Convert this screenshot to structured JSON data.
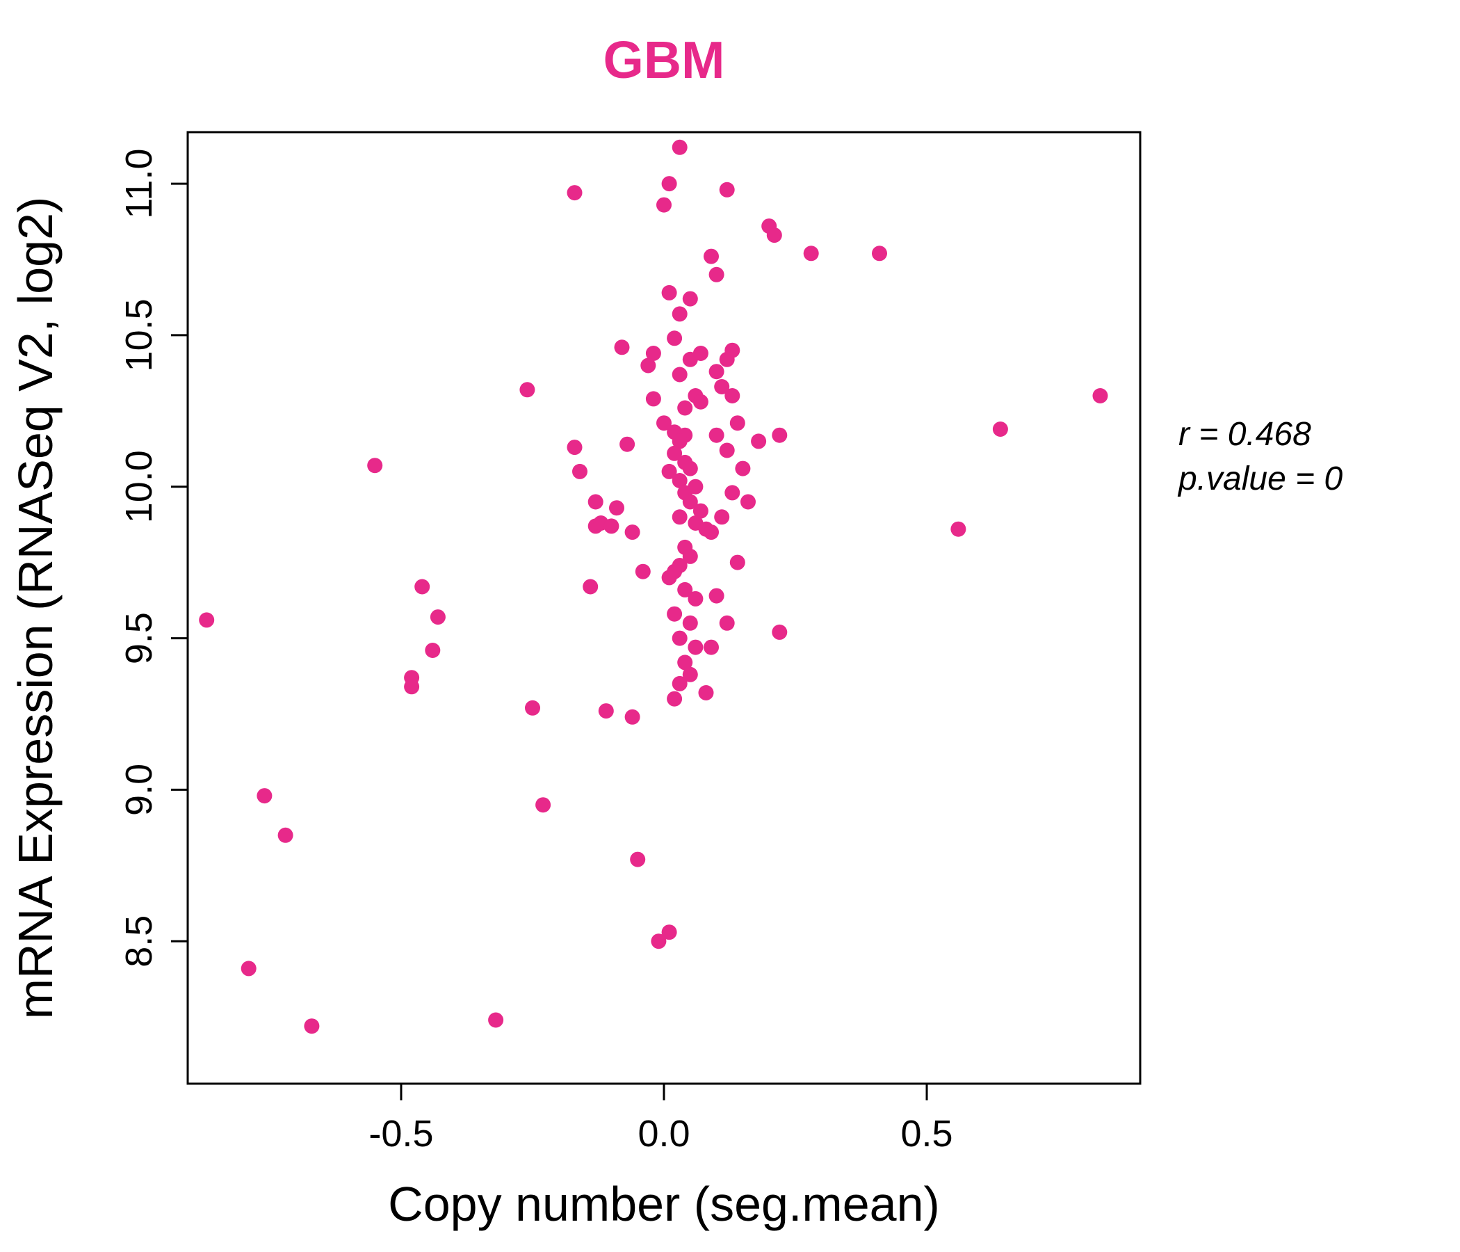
{
  "chart_data": {
    "type": "scatter",
    "title": "GBM",
    "title_color": "#E7298A",
    "point_color": "#E7298A",
    "xlabel": "Copy number (seg.mean)",
    "ylabel": "mRNA Expression (RNASeq V2, log2)",
    "xlim": [
      -0.906,
      0.906
    ],
    "ylim": [
      8.03,
      11.17
    ],
    "x_tick_values": [
      -0.5,
      0.0,
      0.5
    ],
    "x_tick_labels": [
      "-0.5",
      "0.0",
      "0.5"
    ],
    "y_tick_values": [
      8.5,
      9.0,
      9.5,
      10.0,
      10.5,
      11.0
    ],
    "y_tick_labels": [
      "8.5",
      "9.0",
      "9.5",
      "10.0",
      "10.5",
      "11.0"
    ],
    "grid": false,
    "annotations": [
      "r = 0.468",
      "p.value = 0"
    ],
    "points": [
      [
        -0.87,
        9.56
      ],
      [
        -0.79,
        8.41
      ],
      [
        -0.76,
        8.98
      ],
      [
        -0.72,
        8.85
      ],
      [
        -0.67,
        8.22
      ],
      [
        -0.55,
        10.07
      ],
      [
        -0.48,
        9.37
      ],
      [
        -0.48,
        9.34
      ],
      [
        -0.46,
        9.67
      ],
      [
        -0.44,
        9.46
      ],
      [
        -0.43,
        9.57
      ],
      [
        -0.32,
        8.24
      ],
      [
        -0.26,
        10.32
      ],
      [
        -0.25,
        9.27
      ],
      [
        -0.23,
        8.95
      ],
      [
        -0.17,
        10.97
      ],
      [
        -0.17,
        10.13
      ],
      [
        -0.16,
        10.05
      ],
      [
        -0.13,
        9.95
      ],
      [
        -0.13,
        9.87
      ],
      [
        -0.12,
        9.88
      ],
      [
        -0.14,
        9.67
      ],
      [
        -0.11,
        9.26
      ],
      [
        -0.1,
        9.87
      ],
      [
        -0.09,
        9.93
      ],
      [
        -0.08,
        10.46
      ],
      [
        -0.07,
        10.14
      ],
      [
        -0.06,
        9.85
      ],
      [
        -0.05,
        8.77
      ],
      [
        -0.06,
        9.24
      ],
      [
        -0.04,
        9.72
      ],
      [
        -0.02,
        10.44
      ],
      [
        -0.03,
        10.4
      ],
      [
        -0.02,
        10.29
      ],
      [
        -0.01,
        8.5
      ],
      [
        0.0,
        10.93
      ],
      [
        0.01,
        11.0
      ],
      [
        0.03,
        11.12
      ],
      [
        0.01,
        10.64
      ],
      [
        0.03,
        10.57
      ],
      [
        0.05,
        10.62
      ],
      [
        0.02,
        10.49
      ],
      [
        0.03,
        10.37
      ],
      [
        0.05,
        10.42
      ],
      [
        0.07,
        10.44
      ],
      [
        0.04,
        10.26
      ],
      [
        0.06,
        10.3
      ],
      [
        0.07,
        10.28
      ],
      [
        0.02,
        10.18
      ],
      [
        0.04,
        10.17
      ],
      [
        0.03,
        10.15
      ],
      [
        0.02,
        10.11
      ],
      [
        0.04,
        10.08
      ],
      [
        0.05,
        10.06
      ],
      [
        0.01,
        10.05
      ],
      [
        0.0,
        10.21
      ],
      [
        0.03,
        10.02
      ],
      [
        0.06,
        10.0
      ],
      [
        0.04,
        9.98
      ],
      [
        0.05,
        9.95
      ],
      [
        0.07,
        9.92
      ],
      [
        0.03,
        9.9
      ],
      [
        0.06,
        9.88
      ],
      [
        0.08,
        9.86
      ],
      [
        0.04,
        9.8
      ],
      [
        0.05,
        9.77
      ],
      [
        0.03,
        9.74
      ],
      [
        0.02,
        9.72
      ],
      [
        0.01,
        9.7
      ],
      [
        0.04,
        9.66
      ],
      [
        0.06,
        9.63
      ],
      [
        0.02,
        9.58
      ],
      [
        0.05,
        9.55
      ],
      [
        0.03,
        9.5
      ],
      [
        0.06,
        9.47
      ],
      [
        0.04,
        9.42
      ],
      [
        0.05,
        9.38
      ],
      [
        0.03,
        9.35
      ],
      [
        0.02,
        9.3
      ],
      [
        0.08,
        9.32
      ],
      [
        0.01,
        8.53
      ],
      [
        0.09,
        10.76
      ],
      [
        0.1,
        10.7
      ],
      [
        0.12,
        10.98
      ],
      [
        0.13,
        10.45
      ],
      [
        0.12,
        10.42
      ],
      [
        0.1,
        10.38
      ],
      [
        0.11,
        10.33
      ],
      [
        0.13,
        10.3
      ],
      [
        0.14,
        10.21
      ],
      [
        0.1,
        10.17
      ],
      [
        0.12,
        10.12
      ],
      [
        0.15,
        10.06
      ],
      [
        0.13,
        9.98
      ],
      [
        0.11,
        9.9
      ],
      [
        0.09,
        9.85
      ],
      [
        0.14,
        9.75
      ],
      [
        0.1,
        9.64
      ],
      [
        0.12,
        9.55
      ],
      [
        0.09,
        9.47
      ],
      [
        0.16,
        9.95
      ],
      [
        0.18,
        10.15
      ],
      [
        0.2,
        10.86
      ],
      [
        0.21,
        10.83
      ],
      [
        0.22,
        10.17
      ],
      [
        0.22,
        9.52
      ],
      [
        0.28,
        10.77
      ],
      [
        0.41,
        10.77
      ],
      [
        0.56,
        9.86
      ],
      [
        0.64,
        10.19
      ],
      [
        0.83,
        10.3
      ]
    ]
  }
}
